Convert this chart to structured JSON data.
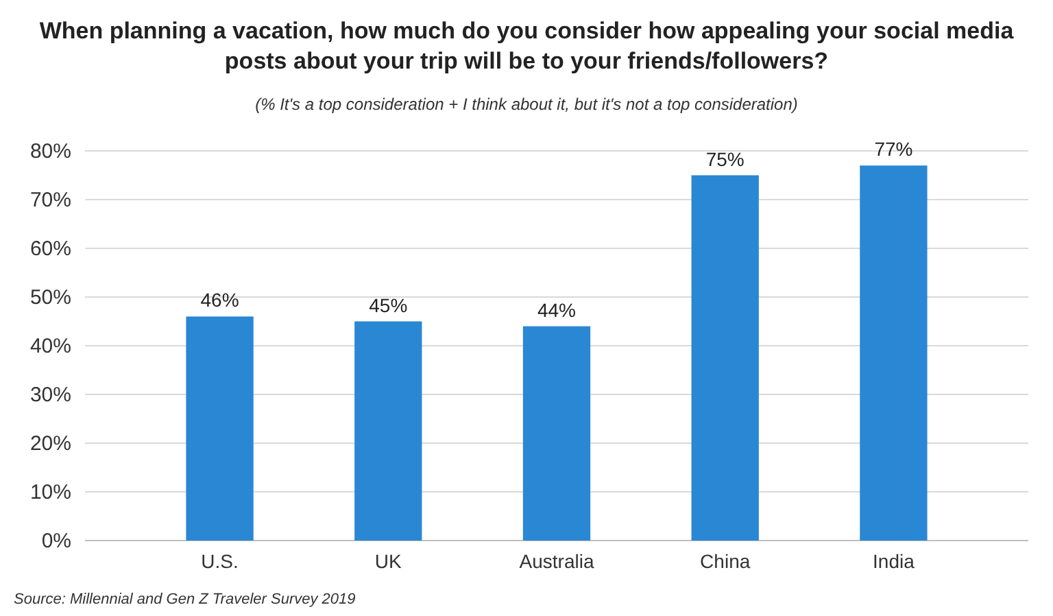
{
  "chart_data": {
    "type": "bar",
    "title": "When planning a vacation, how much do you consider how appealing your social media posts about your trip will be to your friends/followers?",
    "subtitle": "(% It's a top consideration + I think about it, but it's not a top consideration)",
    "categories": [
      "U.S.",
      "UK",
      "Australia",
      "China",
      "India"
    ],
    "values": [
      46,
      45,
      44,
      75,
      77
    ],
    "color": "#2a87d3",
    "ylim": [
      0,
      80
    ],
    "yticks": [
      {
        "value": 0,
        "label": "0%"
      },
      {
        "value": 10,
        "label": "10%"
      },
      {
        "value": 20,
        "label": "20%"
      },
      {
        "value": 30,
        "label": "30%"
      },
      {
        "value": 40,
        "label": "40%"
      },
      {
        "value": 50,
        "label": "50%"
      },
      {
        "value": 60,
        "label": "60%"
      },
      {
        "value": 70,
        "label": "70%"
      },
      {
        "value": 80,
        "label": "80%"
      }
    ],
    "grid": "y",
    "value_labels": [
      "46%",
      "45%",
      "44%",
      "75%",
      "77%"
    ],
    "annotations": [
      "Source: Millennial and Gen Z Traveler Survey 2019"
    ]
  }
}
